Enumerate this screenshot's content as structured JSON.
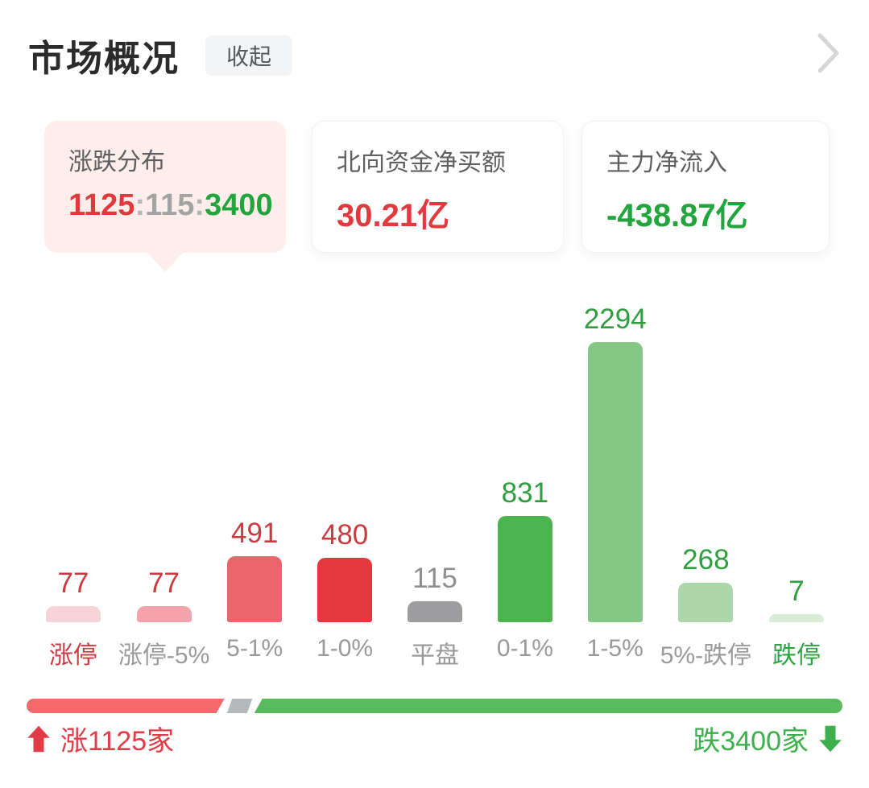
{
  "page": {
    "title": "市场概况",
    "collapse_label": "收起"
  },
  "cards": {
    "distribution": {
      "title": "涨跌分布",
      "up": "1125",
      "flat": "115",
      "down": "3400",
      "separator": ":"
    },
    "northbound": {
      "title": "北向资金净买额",
      "value": "30.21亿"
    },
    "main_inflow": {
      "title": "主力净流入",
      "value": "-438.87亿"
    }
  },
  "chart_data": {
    "type": "bar",
    "title": "涨跌分布",
    "categories": [
      "涨停",
      "涨停-5%",
      "5-1%",
      "1-0%",
      "平盘",
      "0-1%",
      "1-5%",
      "5%-跌停",
      "跌停"
    ],
    "values": [
      77,
      77,
      491,
      480,
      115,
      831,
      2294,
      268,
      7
    ],
    "xlabel": "",
    "ylabel": "",
    "ylim": [
      0,
      2294
    ],
    "grid": false,
    "legend": "none",
    "bar_colors": [
      "#f7d3d7",
      "#f4a3ab",
      "#ec646c",
      "#e4383e",
      "#9d9da0",
      "#4cb44c",
      "#85c885",
      "#abd7ab",
      "#d9eed9"
    ],
    "value_colors": [
      "#cb3a40",
      "#cb3a40",
      "#cb3a40",
      "#cb3a40",
      "#8f8f8f",
      "#2f9e3e",
      "#2f9e3e",
      "#2f9e3e",
      "#2f9e3e"
    ],
    "category_colors": [
      "#cb3a40",
      "#9a9a9a",
      "#9a9a9a",
      "#9a9a9a",
      "#9a9a9a",
      "#9a9a9a",
      "#9a9a9a",
      "#9a9a9a",
      "#2fa344"
    ]
  },
  "summary_bar": {
    "up_count": 1125,
    "flat_count": 115,
    "down_count": 3400,
    "up_label": "涨1125家",
    "down_label": "跌3400家"
  },
  "colors": {
    "title_text": "#2b2b2b",
    "card_selected_bg": "#fdeeec",
    "up_red": "#e0393e",
    "flat_gray": "#a3a3a3",
    "separator_gray": "#b5b5b5",
    "down_green": "#22a53c",
    "northbound_value": "#e0393e",
    "main_inflow_value": "#22a53c",
    "strength_up": "#f5696d",
    "strength_flat": "#b4b8ba",
    "strength_down": "#5aba5e",
    "strength_up_text": "#e23c46",
    "strength_down_text": "#3daf4c",
    "chevron_gray": "#d6d6d6"
  },
  "icons": {
    "chevron_right": "chevron-right-icon",
    "up_arrow": "up-arrow-icon",
    "down_arrow": "down-arrow-icon"
  }
}
